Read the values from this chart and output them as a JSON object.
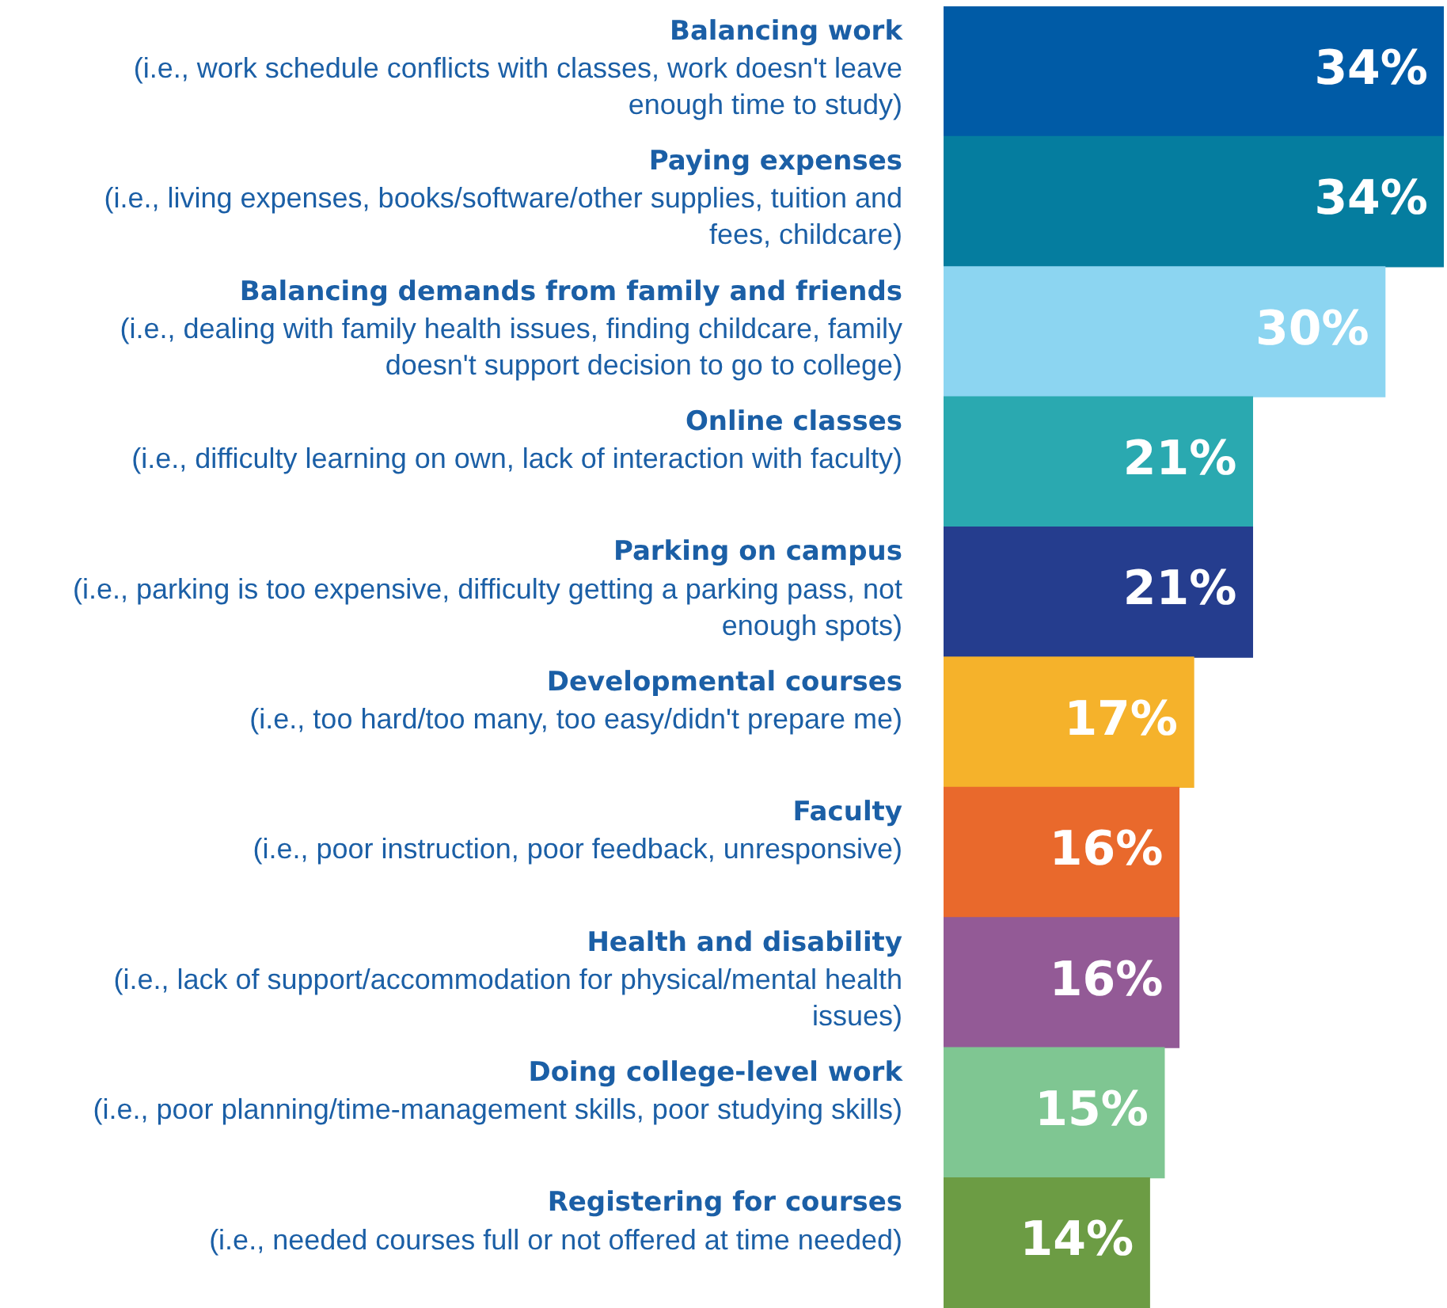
{
  "chart_data": {
    "type": "bar",
    "orientation": "horizontal",
    "categories": [
      "Balancing work\n(i.e., work schedule conflicts with classes, work doesn't leave enough time to study)",
      "Paying expenses\n(i.e., living expenses, books/software/other supplies, tuition and fees, childcare)",
      "Balancing demands from family and friends\n(i.e., dealing with family health issues, finding childcare, family doesn't support decision to go to college)",
      "Online classes\n(i.e., difficulty learning on own, lack of interaction with faculty)",
      "Parking on campus\n(i.e., parking is too expensive, difficulty getting a parking pass, not enough spots)",
      "Developmental courses\n(i.e., too hard/too many, too easy/didn't prepare me)",
      "Faculty\n(i.e., poor instruction, poor feedback, unresponsive)",
      "Health and disability\n(i.e., lack of support/accommodation for physical/mental health issues)",
      "Doing college-level work\n(i.e., poor planning/time-management skills, poor studying skills)",
      "Registering for courses\n(i.e., needed courses full or not offered at time needed)"
    ],
    "values": [
      34,
      34,
      30,
      21,
      21,
      17,
      16,
      16,
      15,
      14
    ],
    "colors": [
      "#005ba6",
      "#057d9f",
      "#8cd5f1",
      "#2aa9b0",
      "#253d8e",
      "#f5b22b",
      "#e9692c",
      "#935a96",
      "#7fc692",
      "#6c9c44"
    ],
    "value_labels": [
      "34%",
      "34%",
      "30%",
      "21%",
      "21%",
      "17%",
      "16%",
      "16%",
      "15%",
      "14%"
    ],
    "legend": false
  }
}
